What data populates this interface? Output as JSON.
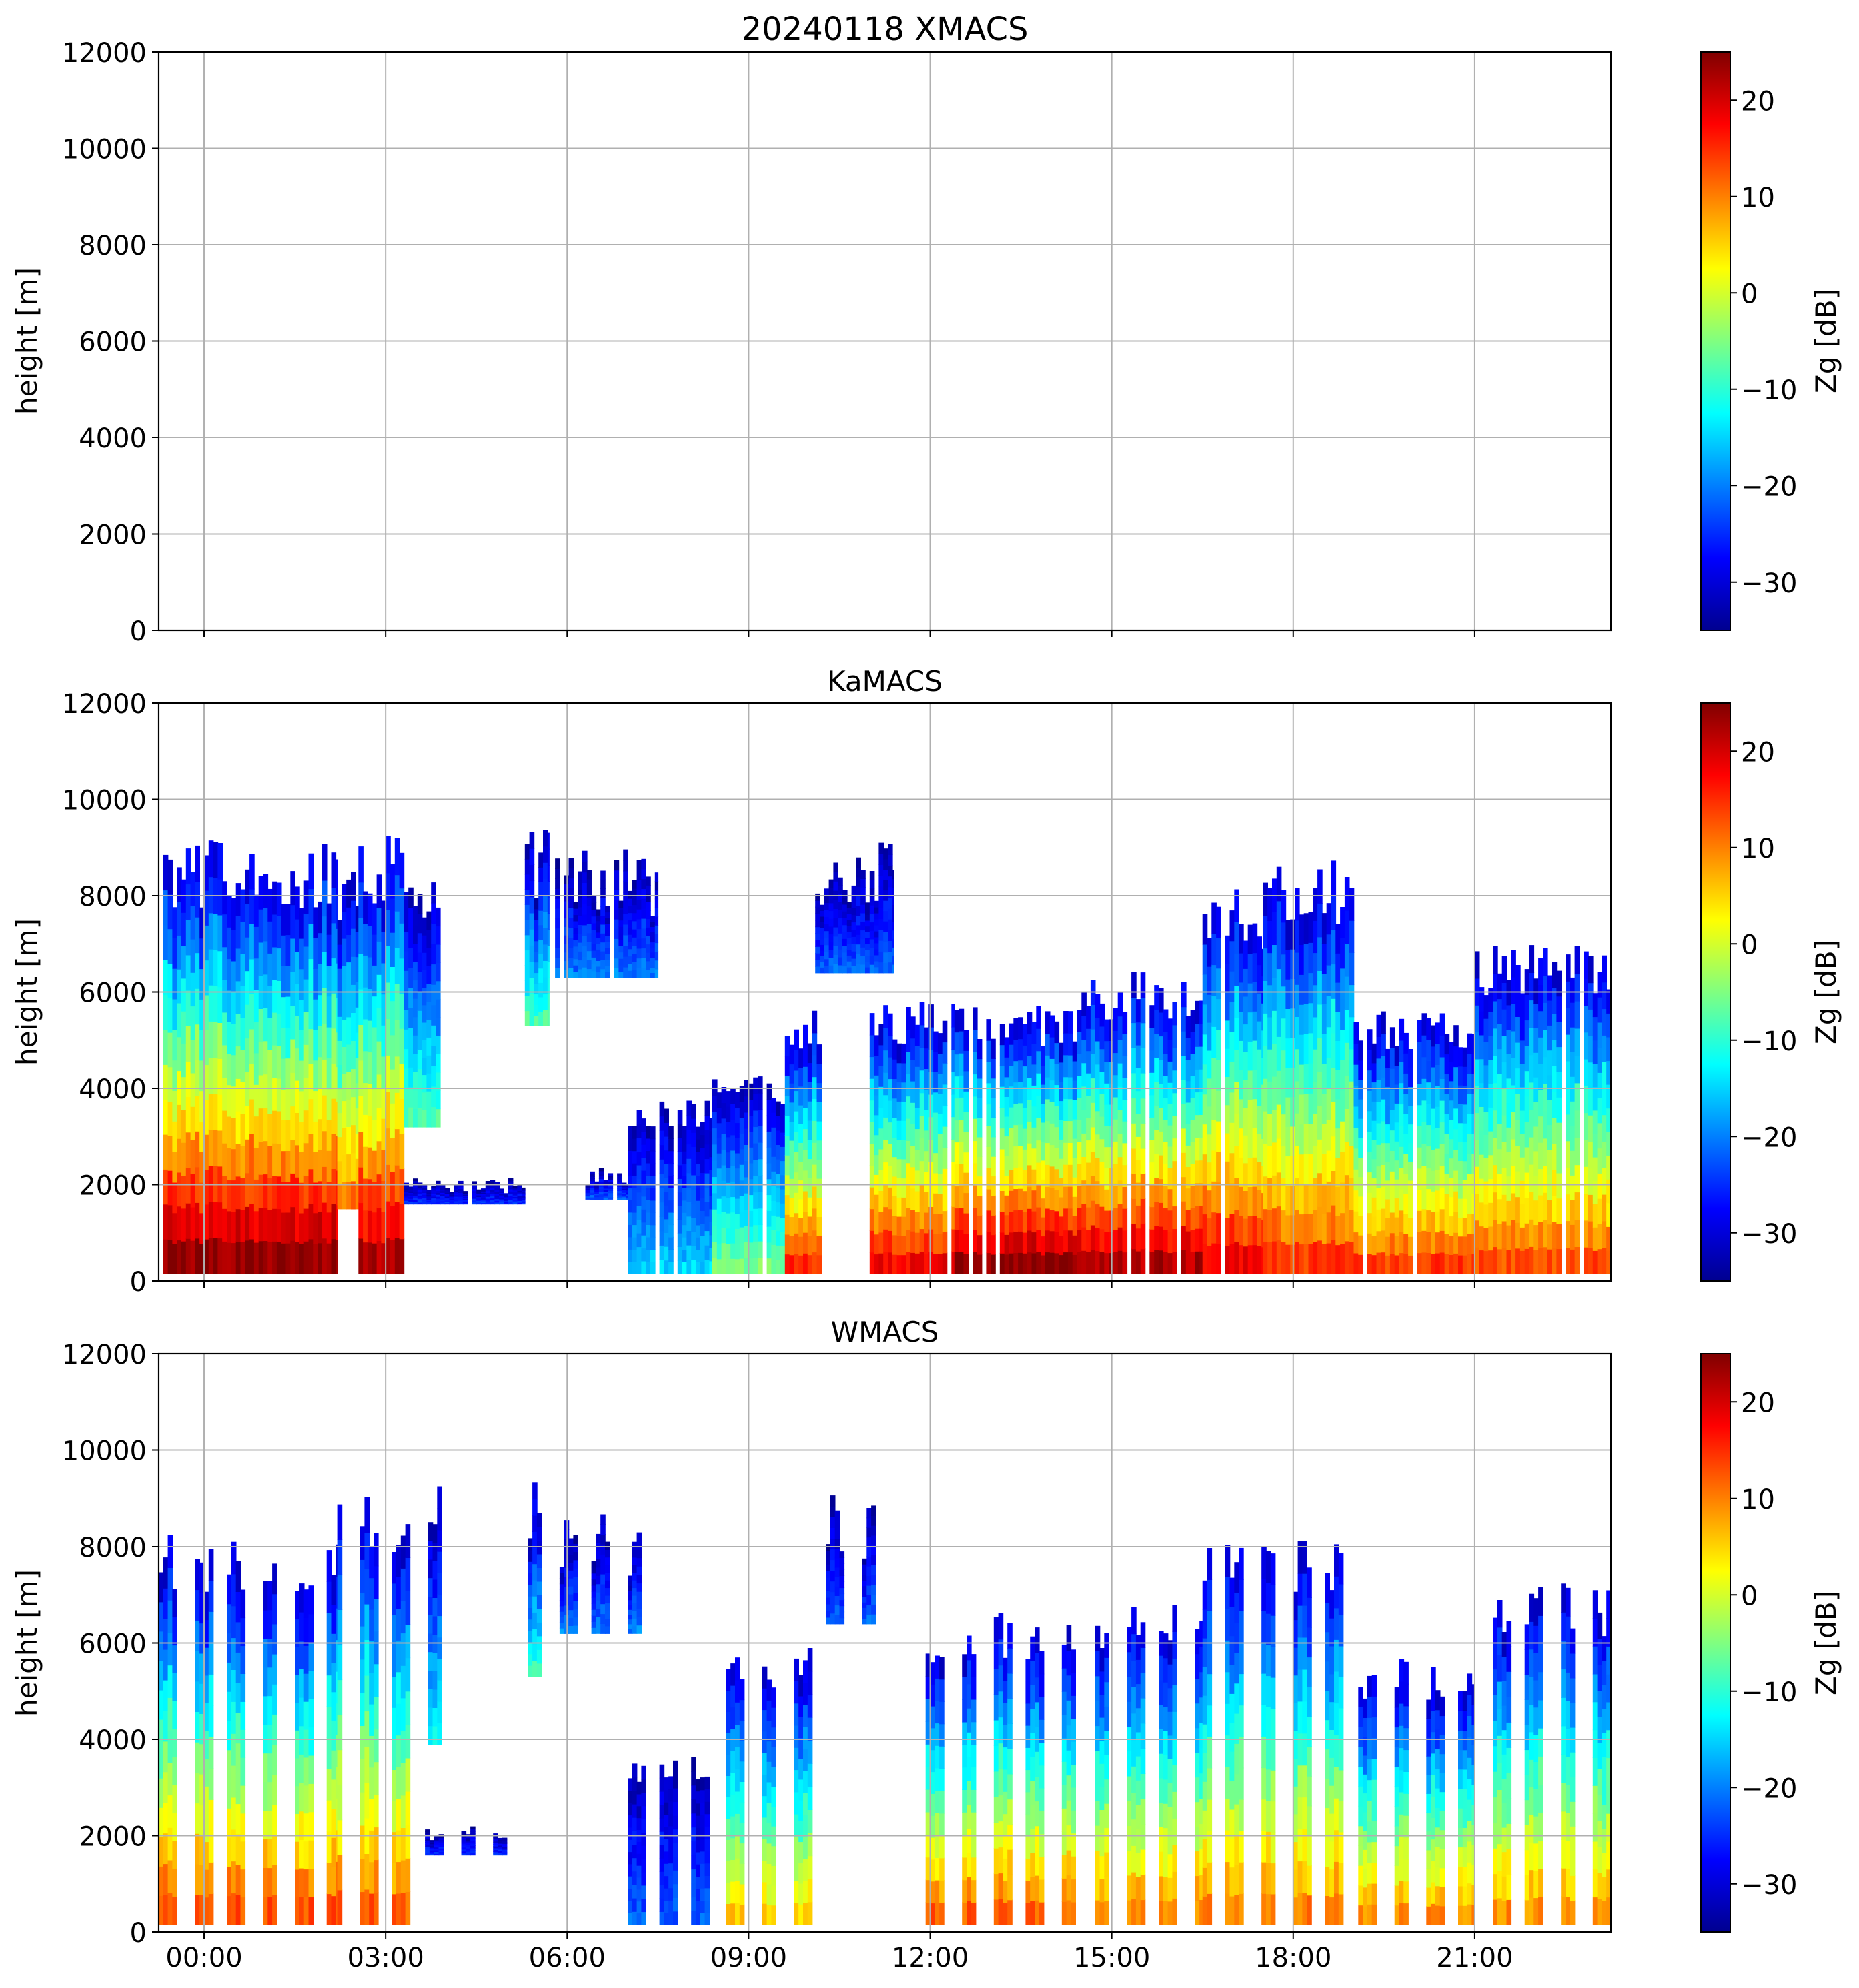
{
  "colors": {
    "grid": "#b0b0b0",
    "axes": "#000000",
    "background": "#ffffff"
  },
  "colormap": "jet",
  "chart_data": [
    {
      "type": "heatmap",
      "panel": "xmacs",
      "title": "20240118 XMACS",
      "xlabel": "",
      "ylabel": "height [m]",
      "xlim": [
        -0.75,
        23.25
      ],
      "ylim": [
        0,
        12000
      ],
      "xticks": [
        0,
        3,
        6,
        9,
        12,
        15,
        18,
        21
      ],
      "xtick_labels": [
        "",
        "",
        "",
        "",
        "",
        "",
        "",
        ""
      ],
      "yticks": [
        0,
        2000,
        4000,
        6000,
        8000,
        10000,
        12000
      ],
      "ytick_labels": [
        "0",
        "2000",
        "4000",
        "6000",
        "8000",
        "10000",
        "12000"
      ],
      "grid": true,
      "colorbar": {
        "label": "Zg [dB]",
        "range": [
          -35,
          25
        ],
        "ticks": [
          -30,
          -20,
          -10,
          0,
          10,
          20
        ],
        "tick_labels": [
          "−30",
          "−20",
          "−10",
          "0",
          "10",
          "20"
        ]
      },
      "mode": "empty",
      "echoes": []
    },
    {
      "type": "heatmap",
      "panel": "kamacs",
      "title": "KaMACS",
      "xlabel": "",
      "ylabel": "height [m]",
      "xlim": [
        -0.75,
        23.25
      ],
      "ylim": [
        0,
        12000
      ],
      "xticks": [
        0,
        3,
        6,
        9,
        12,
        15,
        18,
        21
      ],
      "xtick_labels": [
        "",
        "",
        "",
        "",
        "",
        "",
        "",
        ""
      ],
      "yticks": [
        0,
        2000,
        4000,
        6000,
        8000,
        10000,
        12000
      ],
      "ytick_labels": [
        "0",
        "2000",
        "4000",
        "6000",
        "8000",
        "10000",
        "12000"
      ],
      "grid": true,
      "colorbar": {
        "label": "Zg [dB]",
        "range": [
          -35,
          25
        ],
        "ticks": [
          -30,
          -20,
          -10,
          0,
          10,
          20
        ],
        "tick_labels": [
          "−30",
          "−20",
          "−10",
          "0",
          "10",
          "20"
        ]
      },
      "mode": "continuous",
      "echoes": [
        {
          "t0": -0.75,
          "t1": 2.2,
          "top": 9000,
          "base": 150,
          "zsurf": 24
        },
        {
          "t0": 2.2,
          "t1": 2.55,
          "top": 8600,
          "base": 1500,
          "zsurf": 10
        },
        {
          "t0": 2.55,
          "t1": 3.3,
          "top": 9100,
          "base": 150,
          "zsurf": 22
        },
        {
          "t0": 3.3,
          "t1": 3.9,
          "top": 8300,
          "base": 3200,
          "zsurf": -8
        },
        {
          "t0": 3.3,
          "t1": 5.3,
          "top": 2100,
          "base": 1600,
          "zsurf": -25
        },
        {
          "t0": 5.3,
          "t1": 5.7,
          "top": 9200,
          "base": 5300,
          "zsurf": -8
        },
        {
          "t0": 5.8,
          "t1": 7.5,
          "top": 8800,
          "base": 6300,
          "zsurf": -20
        },
        {
          "t0": 6.3,
          "t1": 7.0,
          "top": 2300,
          "base": 1700,
          "zsurf": -22
        },
        {
          "t0": 7.0,
          "t1": 8.4,
          "top": 3700,
          "base": 150,
          "zsurf": -15
        },
        {
          "t0": 8.4,
          "t1": 9.6,
          "top": 4200,
          "base": 150,
          "zsurf": -5
        },
        {
          "t0": 9.6,
          "t1": 10.2,
          "top": 5600,
          "base": 150,
          "zsurf": 15
        },
        {
          "t0": 10.1,
          "t1": 11.4,
          "top": 9000,
          "base": 6400,
          "zsurf": -22
        },
        {
          "t0": 11.0,
          "t1": 12.4,
          "top": 5700,
          "base": 150,
          "zsurf": 18
        },
        {
          "t0": 12.4,
          "t1": 14.5,
          "top": 5600,
          "base": 150,
          "zsurf": 24
        },
        {
          "t0": 14.5,
          "t1": 16.5,
          "top": 6300,
          "base": 150,
          "zsurf": 22
        },
        {
          "t0": 16.5,
          "t1": 17.5,
          "top": 8000,
          "base": 150,
          "zsurf": 18
        },
        {
          "t0": 17.5,
          "t1": 19.0,
          "top": 8600,
          "base": 150,
          "zsurf": 14
        },
        {
          "t0": 19.0,
          "t1": 21.0,
          "top": 5500,
          "base": 150,
          "zsurf": 14
        },
        {
          "t0": 21.0,
          "t1": 23.25,
          "top": 6900,
          "base": 150,
          "zsurf": 13
        }
      ]
    },
    {
      "type": "heatmap",
      "panel": "wmacs",
      "title": "WMACS",
      "xlabel": "",
      "ylabel": "height [m]",
      "xlim": [
        -0.75,
        23.25
      ],
      "ylim": [
        0,
        12000
      ],
      "xticks": [
        0,
        3,
        6,
        9,
        12,
        15,
        18,
        21
      ],
      "xtick_labels": [
        "00:00",
        "03:00",
        "06:00",
        "09:00",
        "12:00",
        "15:00",
        "18:00",
        "21:00"
      ],
      "yticks": [
        0,
        2000,
        4000,
        6000,
        8000,
        10000,
        12000
      ],
      "ytick_labels": [
        "0",
        "2000",
        "4000",
        "6000",
        "8000",
        "10000",
        "12000"
      ],
      "grid": true,
      "colorbar": {
        "label": "Zg [dB]",
        "range": [
          -35,
          25
        ],
        "ticks": [
          -30,
          -20,
          -10,
          0,
          10,
          20
        ],
        "tick_labels": [
          "−30",
          "−20",
          "−10",
          "0",
          "10",
          "20"
        ]
      },
      "mode": "striped",
      "echoes": [
        {
          "t0": -0.75,
          "t1": 2.2,
          "top": 8200,
          "base": 150,
          "zsurf": 13
        },
        {
          "t0": 2.2,
          "t1": 3.4,
          "top": 9100,
          "base": 150,
          "zsurf": 12
        },
        {
          "t0": 3.4,
          "t1": 4.0,
          "top": 9200,
          "base": 3900,
          "zsurf": -12
        },
        {
          "t0": 3.5,
          "t1": 5.0,
          "top": 2200,
          "base": 1600,
          "zsurf": -25
        },
        {
          "t0": 5.2,
          "t1": 5.6,
          "top": 9200,
          "base": 5300,
          "zsurf": -10
        },
        {
          "t0": 5.8,
          "t1": 7.5,
          "top": 8600,
          "base": 6200,
          "zsurf": -20
        },
        {
          "t0": 7.0,
          "t1": 8.4,
          "top": 3600,
          "base": 150,
          "zsurf": -22
        },
        {
          "t0": 8.4,
          "t1": 10.2,
          "top": 5800,
          "base": 150,
          "zsurf": 5
        },
        {
          "t0": 10.2,
          "t1": 11.4,
          "top": 8900,
          "base": 6400,
          "zsurf": -22
        },
        {
          "t0": 11.7,
          "t1": 14.5,
          "top": 6500,
          "base": 150,
          "zsurf": 12
        },
        {
          "t0": 14.5,
          "t1": 16.5,
          "top": 6800,
          "base": 150,
          "zsurf": 10
        },
        {
          "t0": 16.5,
          "t1": 19.0,
          "top": 8200,
          "base": 150,
          "zsurf": 10
        },
        {
          "t0": 19.0,
          "t1": 21.0,
          "top": 5600,
          "base": 150,
          "zsurf": 9
        },
        {
          "t0": 21.0,
          "t1": 23.25,
          "top": 7100,
          "base": 150,
          "zsurf": 9
        }
      ]
    }
  ]
}
